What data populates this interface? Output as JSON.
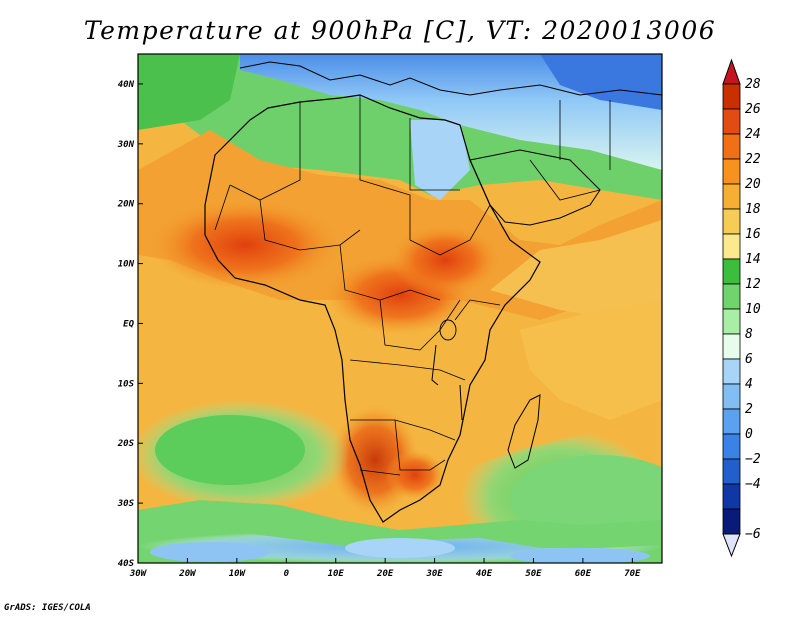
{
  "title": "Temperature at 900hPa [C], VT: 2020013006",
  "credit": "GrADS: IGES/COLA",
  "map": {
    "lon_range": [
      -30,
      76
    ],
    "lat_range": [
      -40,
      45
    ],
    "lat_ticks": [
      {
        "value": 40,
        "label": "40N"
      },
      {
        "value": 30,
        "label": "30N"
      },
      {
        "value": 20,
        "label": "20N"
      },
      {
        "value": 10,
        "label": "10N"
      },
      {
        "value": 0,
        "label": "EQ"
      },
      {
        "value": -10,
        "label": "10S"
      },
      {
        "value": -20,
        "label": "20S"
      },
      {
        "value": -30,
        "label": "30S"
      },
      {
        "value": -40,
        "label": "40S"
      }
    ],
    "lon_ticks": [
      {
        "value": -30,
        "label": "30W"
      },
      {
        "value": -20,
        "label": "20W"
      },
      {
        "value": -10,
        "label": "10W"
      },
      {
        "value": 0,
        "label": "0"
      },
      {
        "value": 10,
        "label": "10E"
      },
      {
        "value": 20,
        "label": "20E"
      },
      {
        "value": 30,
        "label": "30E"
      },
      {
        "value": 40,
        "label": "40E"
      },
      {
        "value": 50,
        "label": "50E"
      },
      {
        "value": 60,
        "label": "60E"
      },
      {
        "value": 70,
        "label": "70E"
      }
    ]
  },
  "colorbar": {
    "labels": [
      "28",
      "26",
      "24",
      "22",
      "20",
      "18",
      "16",
      "14",
      "12",
      "10",
      "8",
      "6",
      "4",
      "2",
      "0",
      "−2",
      "−4",
      "−6"
    ],
    "colors": [
      "#c83000",
      "#e04c14",
      "#f07018",
      "#f7921e",
      "#f6af34",
      "#f7cc56",
      "#fbe98e",
      "#3cbe3c",
      "#6fd46c",
      "#a8eea4",
      "#e8fcec",
      "#a8d4f8",
      "#80bef4",
      "#5aa2f0",
      "#3a82e6",
      "#2160cc",
      "#0f38a6",
      "#0a1a78"
    ],
    "top_triangle_color": "#c8141e",
    "bottom_triangle_color": "#e0e4fa"
  }
}
